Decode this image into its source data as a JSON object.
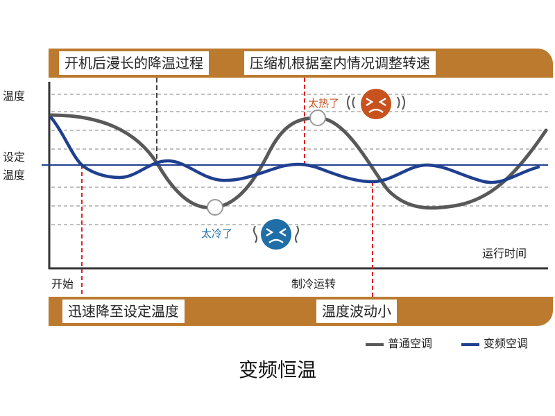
{
  "header_band": {
    "left_label": "开机后漫长的降温过程",
    "right_label": "压缩机根据室内情况调整转速"
  },
  "footer_band": {
    "left_label": "迅速降至设定温度",
    "right_label": "温度波动小"
  },
  "axis": {
    "y_label": "温度",
    "setpoint_label_line1": "设定",
    "setpoint_label_line2": "温度",
    "x_label": "运行时间",
    "start_label": "开始",
    "cooling_label": "制冷运转"
  },
  "annotations": {
    "too_hot": "太热了",
    "too_cold": "太冷了"
  },
  "legend": {
    "normal": "普通空调",
    "inverter": "变频空调"
  },
  "colors": {
    "band": "#bb7a2e",
    "normal": "#595959",
    "inverter": "#1f3f8f",
    "hot_face": "#c8521e",
    "cold_face": "#1f6ea8",
    "marker_line": "#e02020"
  },
  "caption": "变频恒温"
}
